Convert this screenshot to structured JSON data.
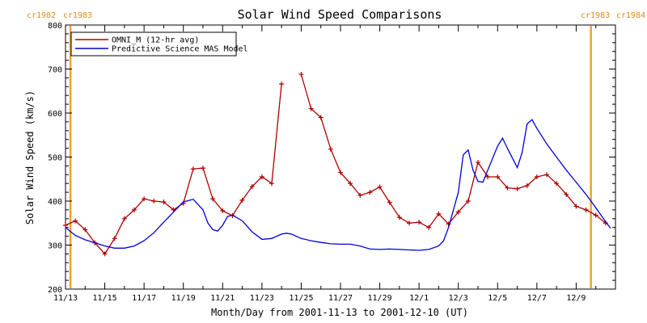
{
  "chart_data": {
    "type": "line",
    "title": "Solar Wind Speed Comparisons",
    "xlabel": "Month/Day from 2001-11-13 to 2001-12-10 (UT)",
    "ylabel": "Solar Wind Speed (km/s)",
    "ylim": [
      200,
      800
    ],
    "xlim": [
      "2001-11-13",
      "2001-12-10"
    ],
    "x_ticks": [
      "11/13",
      "11/15",
      "11/17",
      "11/19",
      "11/21",
      "11/23",
      "11/25",
      "11/27",
      "11/29",
      "12/1",
      "12/3",
      "12/5",
      "12/7",
      "12/9"
    ],
    "y_ticks": [
      200,
      300,
      400,
      500,
      600,
      700,
      800
    ],
    "grid": false,
    "legend": "top-left",
    "carrington_markers": [
      {
        "date": "2001-11-13 06:00",
        "label_left": "cr1982",
        "label_right": "cr1983"
      },
      {
        "date": "2001-12-09 18:00",
        "label_left": "cr1983",
        "label_right": "cr1984"
      }
    ],
    "series": [
      {
        "name": "OMNI_M (12-hr avg)",
        "color": "#b00000",
        "marker": "plus",
        "points": [
          [
            "2001-11-13 00:00",
            345
          ],
          [
            "2001-11-13 12:00",
            355
          ],
          [
            "2001-11-14 00:00",
            335
          ],
          [
            "2001-11-14 12:00",
            305
          ],
          [
            "2001-11-15 00:00",
            280
          ],
          [
            "2001-11-15 12:00",
            315
          ],
          [
            "2001-11-16 00:00",
            360
          ],
          [
            "2001-11-16 12:00",
            380
          ],
          [
            "2001-11-17 00:00",
            405
          ],
          [
            "2001-11-17 12:00",
            400
          ],
          [
            "2001-11-18 00:00",
            398
          ],
          [
            "2001-11-18 12:00",
            380
          ],
          [
            "2001-11-19 00:00",
            395
          ],
          [
            "2001-11-19 12:00",
            473
          ],
          [
            "2001-11-20 00:00",
            475
          ],
          [
            "2001-11-20 12:00",
            405
          ],
          [
            "2001-11-21 00:00",
            378
          ],
          [
            "2001-11-21 12:00",
            367
          ],
          [
            "2001-11-22 00:00",
            402
          ],
          [
            "2001-11-22 12:00",
            433
          ],
          [
            "2001-11-23 00:00",
            455
          ],
          [
            "2001-11-23 12:00",
            440
          ],
          [
            "2001-11-24 00:00",
            666
          ],
          [
            "2001-11-25 00:00",
            688
          ],
          [
            "2001-11-25 12:00",
            610
          ],
          [
            "2001-11-26 00:00",
            590
          ],
          [
            "2001-11-26 12:00",
            518
          ],
          [
            "2001-11-27 00:00",
            465
          ],
          [
            "2001-11-27 12:00",
            440
          ],
          [
            "2001-11-28 00:00",
            413
          ],
          [
            "2001-11-28 12:00",
            420
          ],
          [
            "2001-11-29 00:00",
            432
          ],
          [
            "2001-11-29 12:00",
            397
          ],
          [
            "2001-11-30 00:00",
            363
          ],
          [
            "2001-11-30 12:00",
            350
          ],
          [
            "2001-12-01 00:00",
            352
          ],
          [
            "2001-12-01 12:00",
            340
          ],
          [
            "2001-12-02 00:00",
            371
          ],
          [
            "2001-12-02 12:00",
            348
          ],
          [
            "2001-12-03 00:00",
            375
          ],
          [
            "2001-12-03 12:00",
            400
          ],
          [
            "2001-12-04 00:00",
            488
          ],
          [
            "2001-12-04 12:00",
            455
          ],
          [
            "2001-12-05 00:00",
            455
          ],
          [
            "2001-12-05 12:00",
            430
          ],
          [
            "2001-12-06 00:00",
            428
          ],
          [
            "2001-12-06 12:00",
            435
          ],
          [
            "2001-12-07 00:00",
            455
          ],
          [
            "2001-12-07 12:00",
            460
          ],
          [
            "2001-12-08 00:00",
            440
          ],
          [
            "2001-12-08 12:00",
            415
          ],
          [
            "2001-12-09 00:00",
            388
          ],
          [
            "2001-12-09 12:00",
            380
          ],
          [
            "2001-12-10 00:00",
            368
          ],
          [
            "2001-12-10 12:00",
            350
          ]
        ]
      },
      {
        "name": "Predictive Science MAS Model",
        "color": "#0000dd",
        "marker": "none",
        "points": [
          [
            "2001-11-13 00:00",
            340
          ],
          [
            "2001-11-13 12:00",
            322
          ],
          [
            "2001-11-14 00:00",
            312
          ],
          [
            "2001-11-14 12:00",
            305
          ],
          [
            "2001-11-15 00:00",
            298
          ],
          [
            "2001-11-15 12:00",
            293
          ],
          [
            "2001-11-16 00:00",
            293
          ],
          [
            "2001-11-16 12:00",
            298
          ],
          [
            "2001-11-17 00:00",
            310
          ],
          [
            "2001-11-17 12:00",
            328
          ],
          [
            "2001-11-18 00:00",
            352
          ],
          [
            "2001-11-18 12:00",
            375
          ],
          [
            "2001-11-19 00:00",
            398
          ],
          [
            "2001-11-19 12:00",
            404
          ],
          [
            "2001-11-20 00:00",
            380
          ],
          [
            "2001-11-20 06:00",
            350
          ],
          [
            "2001-11-20 12:00",
            335
          ],
          [
            "2001-11-20 18:00",
            332
          ],
          [
            "2001-11-21 00:00",
            345
          ],
          [
            "2001-11-21 06:00",
            365
          ],
          [
            "2001-11-21 12:00",
            368
          ],
          [
            "2001-11-22 00:00",
            355
          ],
          [
            "2001-11-22 12:00",
            330
          ],
          [
            "2001-11-23 00:00",
            313
          ],
          [
            "2001-11-23 12:00",
            315
          ],
          [
            "2001-11-24 00:00",
            325
          ],
          [
            "2001-11-24 06:00",
            327
          ],
          [
            "2001-11-24 12:00",
            325
          ],
          [
            "2001-11-25 00:00",
            315
          ],
          [
            "2001-11-25 12:00",
            310
          ],
          [
            "2001-11-26 00:00",
            306
          ],
          [
            "2001-11-26 12:00",
            303
          ],
          [
            "2001-11-27 00:00",
            302
          ],
          [
            "2001-11-27 12:00",
            302
          ],
          [
            "2001-11-28 00:00",
            298
          ],
          [
            "2001-11-28 12:00",
            291
          ],
          [
            "2001-11-29 00:00",
            290
          ],
          [
            "2001-11-29 12:00",
            291
          ],
          [
            "2001-11-30 00:00",
            290
          ],
          [
            "2001-11-30 12:00",
            289
          ],
          [
            "2001-12-01 00:00",
            288
          ],
          [
            "2001-12-01 12:00",
            290
          ],
          [
            "2001-12-02 00:00",
            298
          ],
          [
            "2001-12-02 06:00",
            310
          ],
          [
            "2001-12-02 12:00",
            340
          ],
          [
            "2001-12-03 00:00",
            420
          ],
          [
            "2001-12-03 06:00",
            505
          ],
          [
            "2001-12-03 12:00",
            516
          ],
          [
            "2001-12-03 18:00",
            470
          ],
          [
            "2001-12-04 00:00",
            445
          ],
          [
            "2001-12-04 06:00",
            443
          ],
          [
            "2001-12-04 12:00",
            470
          ],
          [
            "2001-12-05 00:00",
            525
          ],
          [
            "2001-12-05 06:00",
            543
          ],
          [
            "2001-12-05 12:00",
            520
          ],
          [
            "2001-12-06 00:00",
            476
          ],
          [
            "2001-12-06 06:00",
            510
          ],
          [
            "2001-12-06 12:00",
            575
          ],
          [
            "2001-12-06 18:00",
            585
          ],
          [
            "2001-12-07 00:00",
            565
          ],
          [
            "2001-12-07 12:00",
            530
          ],
          [
            "2001-12-08 00:00",
            500
          ],
          [
            "2001-12-08 12:00",
            470
          ],
          [
            "2001-12-09 00:00",
            443
          ],
          [
            "2001-12-09 12:00",
            415
          ],
          [
            "2001-12-10 00:00",
            385
          ],
          [
            "2001-12-10 12:00",
            353
          ],
          [
            "2001-12-10 18:00",
            338
          ]
        ]
      }
    ]
  }
}
